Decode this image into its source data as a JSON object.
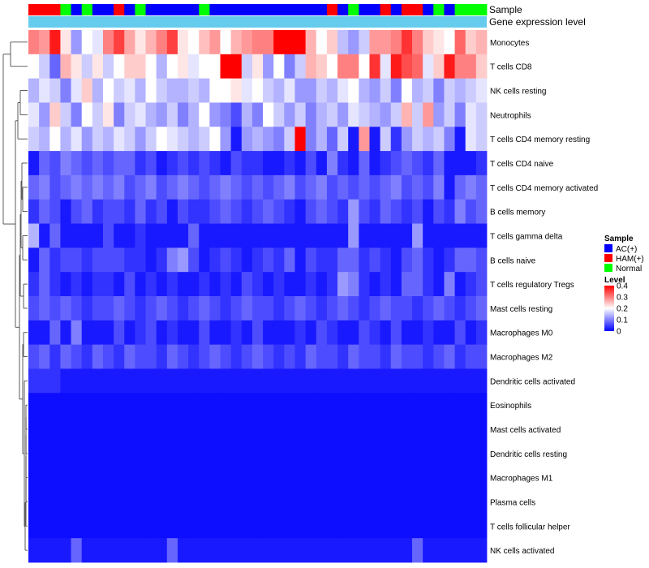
{
  "chart_data": {
    "type": "heatmap",
    "title": "",
    "annotation_tracks": [
      "Sample",
      "Gene expression level"
    ],
    "rows": [
      "Monocytes",
      "T cells CD8",
      "NK cells resting",
      "Neutrophils",
      "T cells CD4 memory resting",
      "T cells CD4 naive",
      "T cells CD4 memory activated",
      "B cells memory",
      "T cells gamma delta",
      "B cells naive",
      "T cells regulatory  Tregs",
      "Mast cells resting",
      "Macrophages M0",
      "Macrophages M2",
      "Dendritic cells activated",
      "Eosinophils",
      "Mast cells activated",
      "Dendritic cells resting",
      "Macrophages M1",
      "Plasma cells",
      "T cells follicular helper",
      "NK cells activated"
    ],
    "sample_groups": [
      "HAM(+)",
      "HAM(+)",
      "HAM(+)",
      "Normal",
      "AC(+)",
      "Normal",
      "AC(+)",
      "AC(+)",
      "HAM(+)",
      "AC(+)",
      "Normal",
      "AC(+)",
      "AC(+)",
      "AC(+)",
      "AC(+)",
      "AC(+)",
      "Normal",
      "AC(+)",
      "AC(+)",
      "AC(+)",
      "AC(+)",
      "AC(+)",
      "AC(+)",
      "AC(+)",
      "AC(+)",
      "AC(+)",
      "AC(+)",
      "AC(+)",
      "HAM(+)",
      "AC(+)",
      "Normal",
      "AC(+)",
      "AC(+)",
      "HAM(+)",
      "AC(+)",
      "HAM(+)",
      "HAM(+)",
      "AC(+)",
      "Normal",
      "AC(+)",
      "Normal",
      "Normal",
      "Normal"
    ],
    "values": [
      [
        0.3,
        0.28,
        0.38,
        0.22,
        0.12,
        0.2,
        0.18,
        0.3,
        0.35,
        0.27,
        0.22,
        0.26,
        0.3,
        0.35,
        0.22,
        0.2,
        0.25,
        0.28,
        0.2,
        0.26,
        0.28,
        0.3,
        0.3,
        0.4,
        0.4,
        0.4,
        0.26,
        0.2,
        0.24,
        0.15,
        0.12,
        0.16,
        0.28,
        0.28,
        0.3,
        0.36,
        0.3,
        0.24,
        0.22,
        0.2,
        0.32,
        0.24,
        0.26
      ],
      [
        0.2,
        0.16,
        0.08,
        0.26,
        0.22,
        0.16,
        0.22,
        0.16,
        0.2,
        0.24,
        0.24,
        0.2,
        0.14,
        0.2,
        0.22,
        0.18,
        0.2,
        0.2,
        0.4,
        0.4,
        0.16,
        0.22,
        0.12,
        0.2,
        0.1,
        0.16,
        0.26,
        0.24,
        0.2,
        0.3,
        0.3,
        0.2,
        0.36,
        0.18,
        0.38,
        0.34,
        0.32,
        0.18,
        0.24,
        0.38,
        0.3,
        0.3,
        0.24
      ],
      [
        0.14,
        0.18,
        0.16,
        0.1,
        0.18,
        0.24,
        0.14,
        0.2,
        0.16,
        0.18,
        0.14,
        0.2,
        0.16,
        0.14,
        0.14,
        0.16,
        0.14,
        0.2,
        0.2,
        0.22,
        0.18,
        0.2,
        0.16,
        0.14,
        0.18,
        0.12,
        0.12,
        0.16,
        0.14,
        0.18,
        0.2,
        0.14,
        0.12,
        0.16,
        0.1,
        0.2,
        0.14,
        0.16,
        0.1,
        0.16,
        0.14,
        0.16,
        0.18
      ],
      [
        0.18,
        0.12,
        0.24,
        0.16,
        0.1,
        0.2,
        0.16,
        0.22,
        0.1,
        0.16,
        0.18,
        0.14,
        0.12,
        0.16,
        0.1,
        0.14,
        0.2,
        0.12,
        0.1,
        0.06,
        0.14,
        0.1,
        0.2,
        0.16,
        0.12,
        0.16,
        0.1,
        0.14,
        0.16,
        0.12,
        0.18,
        0.16,
        0.14,
        0.12,
        0.16,
        0.26,
        0.16,
        0.28,
        0.12,
        0.16,
        0.1,
        0.18,
        0.16
      ],
      [
        0.16,
        0.14,
        0.2,
        0.14,
        0.18,
        0.12,
        0.16,
        0.14,
        0.18,
        0.16,
        0.12,
        0.16,
        0.2,
        0.18,
        0.16,
        0.14,
        0.16,
        0.2,
        0.12,
        0.02,
        0.12,
        0.14,
        0.12,
        0.1,
        0.16,
        0.4,
        0.1,
        0.14,
        0.08,
        0.16,
        0.02,
        0.28,
        0.02,
        0.16,
        0.04,
        0.12,
        0.16,
        0.14,
        0.16,
        0.1,
        0.02,
        0.18,
        0.16
      ],
      [
        0.02,
        0.08,
        0.06,
        0.1,
        0.08,
        0.06,
        0.08,
        0.06,
        0.08,
        0.08,
        0.04,
        0.06,
        0.02,
        0.04,
        0.06,
        0.04,
        0.06,
        0.04,
        0.02,
        0.06,
        0.04,
        0.04,
        0.02,
        0.02,
        0.04,
        0.02,
        0.06,
        0.02,
        0.1,
        0.04,
        0.02,
        0.08,
        0.02,
        0.04,
        0.06,
        0.08,
        0.06,
        0.04,
        0.08,
        0.02,
        0.02,
        0.02,
        0.04
      ],
      [
        0.08,
        0.1,
        0.06,
        0.08,
        0.1,
        0.08,
        0.1,
        0.08,
        0.1,
        0.06,
        0.08,
        0.1,
        0.06,
        0.08,
        0.1,
        0.08,
        0.06,
        0.08,
        0.1,
        0.08,
        0.06,
        0.08,
        0.06,
        0.08,
        0.1,
        0.06,
        0.08,
        0.1,
        0.06,
        0.08,
        0.06,
        0.08,
        0.06,
        0.08,
        0.1,
        0.06,
        0.08,
        0.06,
        0.1,
        0.02,
        0.08,
        0.1,
        0.08
      ],
      [
        0.04,
        0.08,
        0.06,
        0.02,
        0.06,
        0.08,
        0.04,
        0.06,
        0.06,
        0.04,
        0.08,
        0.04,
        0.06,
        0.02,
        0.06,
        0.04,
        0.04,
        0.06,
        0.08,
        0.06,
        0.04,
        0.06,
        0.08,
        0.06,
        0.04,
        0.02,
        0.06,
        0.08,
        0.06,
        0.04,
        0.12,
        0.06,
        0.04,
        0.08,
        0.06,
        0.04,
        0.06,
        0.02,
        0.06,
        0.04,
        0.1,
        0.06,
        0.08
      ],
      [
        0.14,
        0.02,
        0.08,
        0.02,
        0.02,
        0.02,
        0.02,
        0.06,
        0.02,
        0.02,
        0.04,
        0.02,
        0.02,
        0.02,
        0.02,
        0.08,
        0.02,
        0.02,
        0.02,
        0.02,
        0.02,
        0.02,
        0.02,
        0.02,
        0.02,
        0.02,
        0.02,
        0.02,
        0.02,
        0.02,
        0.12,
        0.02,
        0.02,
        0.02,
        0.02,
        0.02,
        0.12,
        0.02,
        0.02,
        0.02,
        0.02,
        0.02,
        0.02
      ],
      [
        0.02,
        0.08,
        0.04,
        0.06,
        0.06,
        0.04,
        0.06,
        0.06,
        0.06,
        0.04,
        0.04,
        0.02,
        0.04,
        0.1,
        0.12,
        0.06,
        0.02,
        0.04,
        0.06,
        0.04,
        0.02,
        0.04,
        0.06,
        0.04,
        0.08,
        0.02,
        0.06,
        0.04,
        0.04,
        0.08,
        0.08,
        0.04,
        0.06,
        0.04,
        0.02,
        0.06,
        0.08,
        0.04,
        0.02,
        0.04,
        0.08,
        0.08,
        0.06
      ],
      [
        0.04,
        0.08,
        0.04,
        0.02,
        0.04,
        0.02,
        0.04,
        0.04,
        0.02,
        0.06,
        0.02,
        0.04,
        0.02,
        0.04,
        0.02,
        0.02,
        0.04,
        0.02,
        0.04,
        0.02,
        0.06,
        0.04,
        0.02,
        0.04,
        0.02,
        0.02,
        0.04,
        0.02,
        0.04,
        0.12,
        0.1,
        0.04,
        0.02,
        0.04,
        0.02,
        0.08,
        0.08,
        0.04,
        0.02,
        0.1,
        0.02,
        0.04,
        0.06
      ],
      [
        0.06,
        0.08,
        0.06,
        0.08,
        0.06,
        0.04,
        0.06,
        0.06,
        0.08,
        0.06,
        0.04,
        0.06,
        0.08,
        0.06,
        0.04,
        0.06,
        0.08,
        0.06,
        0.04,
        0.06,
        0.08,
        0.06,
        0.06,
        0.04,
        0.06,
        0.08,
        0.06,
        0.04,
        0.06,
        0.08,
        0.06,
        0.04,
        0.06,
        0.08,
        0.06,
        0.06,
        0.04,
        0.06,
        0.08,
        0.06,
        0.04,
        0.06,
        0.08
      ],
      [
        0.02,
        0.02,
        0.08,
        0.02,
        0.1,
        0.02,
        0.02,
        0.02,
        0.06,
        0.02,
        0.04,
        0.06,
        0.02,
        0.04,
        0.02,
        0.02,
        0.06,
        0.02,
        0.02,
        0.04,
        0.02,
        0.06,
        0.02,
        0.02,
        0.02,
        0.04,
        0.02,
        0.06,
        0.04,
        0.02,
        0.02,
        0.06,
        0.04,
        0.02,
        0.06,
        0.02,
        0.02,
        0.04,
        0.02,
        0.02,
        0.06,
        0.02,
        0.04
      ],
      [
        0.06,
        0.08,
        0.04,
        0.08,
        0.06,
        0.04,
        0.08,
        0.06,
        0.04,
        0.08,
        0.06,
        0.06,
        0.04,
        0.08,
        0.06,
        0.04,
        0.06,
        0.08,
        0.06,
        0.04,
        0.06,
        0.08,
        0.06,
        0.04,
        0.06,
        0.04,
        0.08,
        0.06,
        0.06,
        0.04,
        0.08,
        0.06,
        0.06,
        0.04,
        0.08,
        0.06,
        0.06,
        0.04,
        0.06,
        0.08,
        0.04,
        0.06,
        0.06
      ],
      [
        0.04,
        0.04,
        0.04,
        0.02,
        0.02,
        0.02,
        0.02,
        0.02,
        0.02,
        0.02,
        0.02,
        0.02,
        0.02,
        0.02,
        0.02,
        0.02,
        0.02,
        0.02,
        0.02,
        0.02,
        0.02,
        0.02,
        0.02,
        0.02,
        0.02,
        0.02,
        0.02,
        0.02,
        0.02,
        0.02,
        0.02,
        0.02,
        0.02,
        0.02,
        0.02,
        0.02,
        0.02,
        0.02,
        0.02,
        0.02,
        0.02,
        0.02,
        0.02
      ],
      [
        0.01,
        0.01,
        0.01,
        0.01,
        0.01,
        0.01,
        0.01,
        0.01,
        0.01,
        0.01,
        0.01,
        0.01,
        0.01,
        0.01,
        0.01,
        0.01,
        0.01,
        0.01,
        0.01,
        0.01,
        0.01,
        0.01,
        0.01,
        0.01,
        0.01,
        0.01,
        0.01,
        0.01,
        0.01,
        0.01,
        0.01,
        0.01,
        0.01,
        0.01,
        0.01,
        0.01,
        0.01,
        0.01,
        0.01,
        0.01,
        0.01,
        0.01,
        0.01
      ],
      [
        0.01,
        0.01,
        0.01,
        0.01,
        0.01,
        0.01,
        0.01,
        0.01,
        0.01,
        0.01,
        0.01,
        0.01,
        0.01,
        0.01,
        0.01,
        0.01,
        0.01,
        0.01,
        0.01,
        0.01,
        0.01,
        0.01,
        0.01,
        0.01,
        0.01,
        0.01,
        0.01,
        0.01,
        0.01,
        0.01,
        0.01,
        0.01,
        0.01,
        0.01,
        0.01,
        0.01,
        0.01,
        0.01,
        0.01,
        0.01,
        0.01,
        0.01,
        0.01
      ],
      [
        0.01,
        0.01,
        0.01,
        0.01,
        0.01,
        0.01,
        0.01,
        0.01,
        0.01,
        0.01,
        0.01,
        0.01,
        0.01,
        0.01,
        0.01,
        0.01,
        0.01,
        0.01,
        0.01,
        0.01,
        0.01,
        0.01,
        0.01,
        0.01,
        0.01,
        0.01,
        0.01,
        0.01,
        0.01,
        0.01,
        0.01,
        0.01,
        0.01,
        0.01,
        0.01,
        0.01,
        0.01,
        0.01,
        0.01,
        0.01,
        0.01,
        0.01,
        0.01
      ],
      [
        0.01,
        0.01,
        0.01,
        0.01,
        0.01,
        0.01,
        0.01,
        0.01,
        0.01,
        0.01,
        0.01,
        0.01,
        0.01,
        0.01,
        0.01,
        0.01,
        0.01,
        0.01,
        0.01,
        0.01,
        0.01,
        0.01,
        0.01,
        0.01,
        0.01,
        0.01,
        0.01,
        0.01,
        0.01,
        0.01,
        0.01,
        0.01,
        0.01,
        0.01,
        0.01,
        0.01,
        0.01,
        0.01,
        0.01,
        0.01,
        0.01,
        0.01,
        0.01
      ],
      [
        0.01,
        0.01,
        0.01,
        0.01,
        0.01,
        0.01,
        0.01,
        0.01,
        0.01,
        0.01,
        0.01,
        0.01,
        0.01,
        0.01,
        0.01,
        0.01,
        0.01,
        0.01,
        0.01,
        0.01,
        0.01,
        0.01,
        0.01,
        0.01,
        0.01,
        0.01,
        0.01,
        0.01,
        0.01,
        0.01,
        0.01,
        0.01,
        0.01,
        0.01,
        0.01,
        0.01,
        0.01,
        0.01,
        0.01,
        0.01,
        0.01,
        0.01,
        0.01
      ],
      [
        0.01,
        0.01,
        0.01,
        0.01,
        0.01,
        0.01,
        0.01,
        0.01,
        0.01,
        0.01,
        0.01,
        0.01,
        0.01,
        0.01,
        0.01,
        0.01,
        0.01,
        0.01,
        0.01,
        0.01,
        0.01,
        0.01,
        0.01,
        0.01,
        0.01,
        0.01,
        0.01,
        0.01,
        0.01,
        0.01,
        0.01,
        0.01,
        0.01,
        0.01,
        0.01,
        0.01,
        0.01,
        0.01,
        0.01,
        0.01,
        0.01,
        0.01,
        0.01
      ],
      [
        0.02,
        0.02,
        0.02,
        0.02,
        0.08,
        0.02,
        0.02,
        0.02,
        0.02,
        0.02,
        0.02,
        0.02,
        0.02,
        0.08,
        0.02,
        0.02,
        0.02,
        0.02,
        0.02,
        0.02,
        0.02,
        0.02,
        0.02,
        0.02,
        0.02,
        0.02,
        0.02,
        0.02,
        0.02,
        0.02,
        0.02,
        0.02,
        0.02,
        0.02,
        0.02,
        0.02,
        0.08,
        0.02,
        0.02,
        0.02,
        0.02,
        0.02,
        0.02
      ]
    ],
    "color_scale": {
      "min": 0,
      "mid": 0.2,
      "max": 0.4,
      "low_color": "#0000ff",
      "mid_color": "#ffffff",
      "high_color": "#ff0000"
    },
    "gene_expression_color": "#66ccee",
    "legend": {
      "placement": "right",
      "sample_title": "Sample",
      "sample_entries": [
        {
          "label": "AC(+)",
          "color": "#0000ff"
        },
        {
          "label": "HAM(+)",
          "color": "#ff0000"
        },
        {
          "label": "Normal",
          "color": "#00ff00"
        }
      ],
      "level_title": "Level",
      "level_ticks": [
        "0.4",
        "0.3",
        "0.2",
        "0.1",
        "0"
      ]
    }
  }
}
